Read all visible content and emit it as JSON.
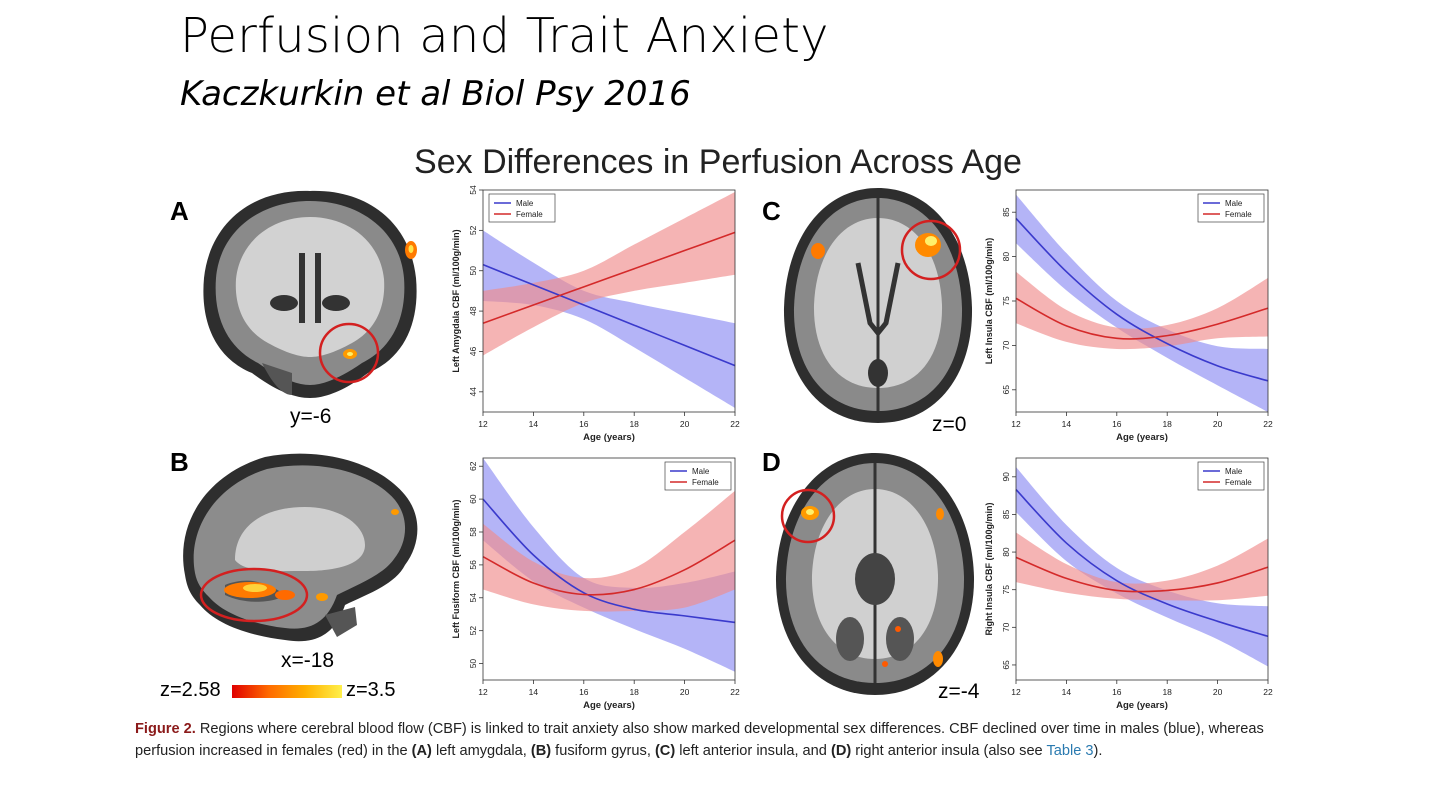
{
  "slide": {
    "title": "Perfusion and Trait Anxiety",
    "subtitle": "Kaczkurkin et al Biol Psy 2016"
  },
  "figure": {
    "title": "Sex Differences in Perfusion Across Age",
    "panels": [
      {
        "letter": "A",
        "coordinate": "y=-6"
      },
      {
        "letter": "B",
        "coordinate": "x=-18"
      },
      {
        "letter": "C",
        "coordinate": "z=0"
      },
      {
        "letter": "D",
        "coordinate": "z=-4"
      }
    ],
    "colorbar": {
      "low": "z=2.58",
      "high": "z=3.5"
    },
    "caption": {
      "label": "Figure 2.",
      "text1": " Regions where cerebral blood flow (CBF) is linked to trait anxiety also show marked developmental sex differences. CBF declined over time in males (blue), whereas perfusion increased in females (red) in the ",
      "a": "(A)",
      "t2": " left amygdala, ",
      "b": "(B)",
      "t3": " fusiform gyrus, ",
      "c": "(C)",
      "t4": " left anterior insula, and ",
      "d": "(D)",
      "t5": " right anterior insula (also see ",
      "link": "Table 3",
      "t6": ")."
    }
  },
  "colors": {
    "male": "#3a3acc",
    "male_band": "#8c8cf2",
    "female": "#d42a2a",
    "female_band": "#f08c8c"
  },
  "chart_data": [
    {
      "id": "A",
      "type": "line",
      "xlabel": "Age (years)",
      "ylabel": "Left Amygdala CBF (ml/100g/min)",
      "xlim": [
        12,
        22
      ],
      "ylim": [
        43,
        54
      ],
      "xticks": [
        12,
        14,
        16,
        18,
        20,
        22
      ],
      "yticks": [
        44,
        46,
        48,
        50,
        52,
        54
      ],
      "legend": [
        "Male",
        "Female"
      ],
      "legend_position": "top-left",
      "x": [
        12,
        14,
        16,
        18,
        20,
        22
      ],
      "series": [
        {
          "name": "Male",
          "values": [
            50.3,
            49.3,
            48.3,
            47.3,
            46.3,
            45.3
          ],
          "lower": [
            48.5,
            48.3,
            47.6,
            46.2,
            44.7,
            43.2
          ],
          "upper": [
            52.0,
            50.4,
            49.0,
            48.4,
            47.9,
            47.4
          ]
        },
        {
          "name": "Female",
          "values": [
            47.4,
            48.3,
            49.2,
            50.1,
            51.0,
            51.9
          ],
          "lower": [
            45.8,
            47.2,
            48.4,
            49.0,
            49.4,
            49.8
          ],
          "upper": [
            49.0,
            49.4,
            50.0,
            51.3,
            52.6,
            53.9
          ]
        }
      ]
    },
    {
      "id": "B",
      "type": "line",
      "xlabel": "Age (years)",
      "ylabel": "Left Fusiform CBF (ml/100g/min)",
      "xlim": [
        12,
        22
      ],
      "ylim": [
        49,
        62.5
      ],
      "xticks": [
        12,
        14,
        16,
        18,
        20,
        22
      ],
      "yticks": [
        50,
        52,
        54,
        56,
        58,
        60,
        62
      ],
      "legend": [
        "Male",
        "Female"
      ],
      "legend_position": "top-right",
      "x": [
        12,
        14,
        16,
        18,
        20,
        22
      ],
      "series": [
        {
          "name": "Male",
          "values": [
            60.0,
            56.6,
            54.3,
            53.3,
            52.9,
            52.5
          ],
          "lower": [
            57.5,
            55.0,
            53.4,
            52.1,
            50.9,
            49.5
          ],
          "upper": [
            62.5,
            58.3,
            55.2,
            54.6,
            54.9,
            55.6
          ]
        },
        {
          "name": "Female",
          "values": [
            56.5,
            54.9,
            54.2,
            54.5,
            55.7,
            57.5
          ],
          "lower": [
            54.5,
            53.6,
            53.2,
            53.2,
            53.4,
            54.5
          ],
          "upper": [
            58.5,
            56.2,
            55.2,
            55.8,
            58.0,
            60.5
          ]
        }
      ]
    },
    {
      "id": "C",
      "type": "line",
      "xlabel": "Age (years)",
      "ylabel": "Left Insula CBF (ml/100g/min)",
      "xlim": [
        12,
        22
      ],
      "ylim": [
        62.5,
        87.5
      ],
      "xticks": [
        12,
        14,
        16,
        18,
        20,
        22
      ],
      "yticks": [
        65,
        70,
        75,
        80,
        85
      ],
      "legend": [
        "Male",
        "Female"
      ],
      "legend_position": "top-right",
      "x": [
        12,
        14,
        16,
        18,
        20,
        22
      ],
      "series": [
        {
          "name": "Male",
          "values": [
            84.3,
            78.3,
            73.5,
            70.2,
            67.7,
            66.0
          ],
          "lower": [
            81.5,
            76.2,
            72.0,
            68.6,
            65.5,
            62.5
          ],
          "upper": [
            87.0,
            80.4,
            75.0,
            71.8,
            69.9,
            69.6
          ]
        },
        {
          "name": "Female",
          "values": [
            75.3,
            72.2,
            70.8,
            71.1,
            72.4,
            74.2
          ],
          "lower": [
            72.5,
            70.4,
            69.6,
            69.9,
            70.8,
            71.0
          ],
          "upper": [
            78.3,
            74.0,
            72.0,
            72.3,
            74.2,
            77.6
          ]
        }
      ]
    },
    {
      "id": "D",
      "type": "line",
      "xlabel": "Age (years)",
      "ylabel": "Right Insula CBF (ml/100g/min)",
      "xlim": [
        12,
        22
      ],
      "ylim": [
        63,
        92.5
      ],
      "xticks": [
        12,
        14,
        16,
        18,
        20,
        22
      ],
      "yticks": [
        65,
        70,
        75,
        80,
        85,
        90
      ],
      "legend": [
        "Male",
        "Female"
      ],
      "legend_position": "top-right",
      "x": [
        12,
        14,
        16,
        18,
        20,
        22
      ],
      "series": [
        {
          "name": "Male",
          "values": [
            88.3,
            81.2,
            76.2,
            73.1,
            70.8,
            68.8
          ],
          "lower": [
            85.3,
            78.8,
            74.5,
            71.3,
            68.4,
            64.8
          ],
          "upper": [
            91.3,
            83.6,
            77.9,
            74.9,
            73.2,
            72.8
          ]
        },
        {
          "name": "Female",
          "values": [
            79.3,
            76.5,
            74.9,
            74.9,
            75.9,
            78.0
          ],
          "lower": [
            76.0,
            74.6,
            73.8,
            73.6,
            73.6,
            74.2
          ],
          "upper": [
            82.6,
            78.4,
            76.0,
            76.2,
            78.2,
            81.8
          ]
        }
      ]
    }
  ]
}
